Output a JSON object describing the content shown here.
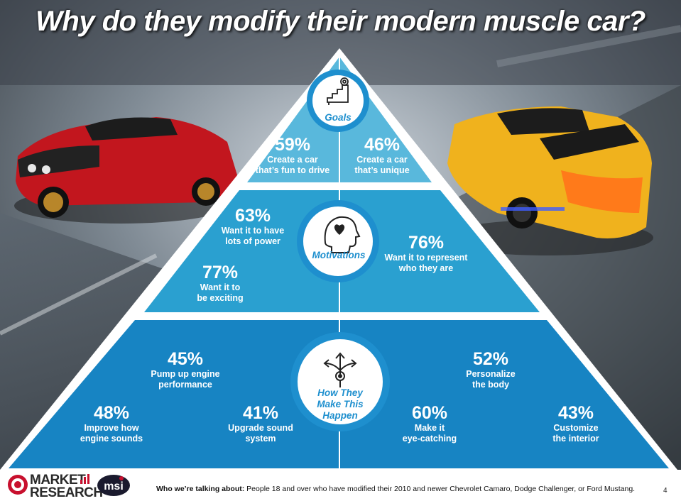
{
  "title": "Why do they modify their modern muscle car?",
  "colors": {
    "tier_light": "#59b8dc",
    "tier_mid": "#2aa0d0",
    "tier_dark": "#1784c3",
    "circle_text": "#1e8fce"
  },
  "pyramid": {
    "goals": {
      "label": "Goals",
      "icon": "stairs-goal-icon",
      "items": [
        {
          "pct": "59%",
          "line1": "Create a car",
          "line2": "that’s fun to drive"
        },
        {
          "pct": "46%",
          "line1": "Create a car",
          "line2": "that’s unique"
        }
      ]
    },
    "motivations": {
      "label": "Motivations",
      "icon": "head-heart-icon",
      "items": [
        {
          "pct": "63%",
          "line1": "Want it to have",
          "line2": "lots of power"
        },
        {
          "pct": "77%",
          "line1": "Want it to",
          "line2": "be exciting"
        },
        {
          "pct": "76%",
          "line1": "Want it to represent",
          "line2": "who they are"
        }
      ]
    },
    "how": {
      "label_line1": "How They",
      "label_line2": "Make This",
      "label_line3": "Happen",
      "icon": "branching-arrows-gear-icon",
      "items": [
        {
          "pct": "45%",
          "line1": "Pump up engine",
          "line2": "performance"
        },
        {
          "pct": "48%",
          "line1": "Improve how",
          "line2": "engine sounds"
        },
        {
          "pct": "41%",
          "line1": "Upgrade sound",
          "line2": "system"
        },
        {
          "pct": "52%",
          "line1": "Personalize",
          "line2": "the body"
        },
        {
          "pct": "60%",
          "line1": "Make it",
          "line2": "eye-catching"
        },
        {
          "pct": "43%",
          "line1": "Customize",
          "line2": "the interior"
        }
      ]
    }
  },
  "footer": {
    "who_label": "Who we’re talking about:",
    "who_text": " People 18 and over who have modified their 2010 and newer Chevrolet Camaro, Dodge Challenger, or Ford Mustang.",
    "page_number": "4",
    "logo_line1": "MARKET",
    "logo_line2": "RESEARCH",
    "logo2": "msi"
  }
}
